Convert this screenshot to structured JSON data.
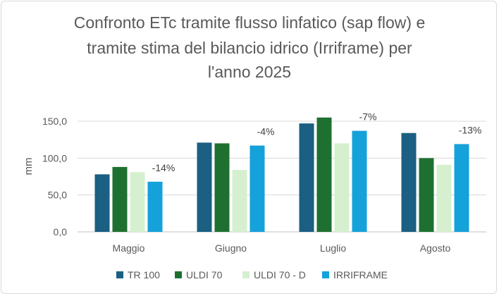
{
  "chart_data": {
    "type": "bar",
    "title": "Confronto ETc tramite flusso linfatico (sap flow) e tramite stima del bilancio idrico (Irriframe) per l'anno 2025",
    "title_lines": [
      "Confronto ETc tramite flusso linfatico (sap flow) e",
      "tramite stima del bilancio idrico (Irriframe) per",
      "l'anno 2025"
    ],
    "xlabel": "",
    "ylabel": "mm",
    "ylim": [
      0,
      150
    ],
    "yticks": [
      0,
      50,
      100,
      150
    ],
    "ytick_labels": [
      "0,0",
      "50,0",
      "100,0",
      "150,0"
    ],
    "grid": true,
    "legend_position": "bottom",
    "categories": [
      "Maggio",
      "Giugno",
      "Luglio",
      "Agosto"
    ],
    "series": [
      {
        "name": "TR 100",
        "color": "#1b5f82",
        "values": [
          78,
          121,
          147,
          134
        ]
      },
      {
        "name": "ULDI 70",
        "color": "#1e7031",
        "values": [
          88,
          120,
          155,
          100
        ]
      },
      {
        "name": "ULDI 70 - D",
        "color": "#d6f0cf",
        "values": [
          81,
          84,
          120,
          91
        ]
      },
      {
        "name": "IRRIFRAME",
        "color": "#15a1da",
        "values": [
          68,
          117,
          137,
          119
        ]
      }
    ],
    "annotations": [
      "-14%",
      "-4%",
      "-7%",
      "-13%"
    ]
  }
}
